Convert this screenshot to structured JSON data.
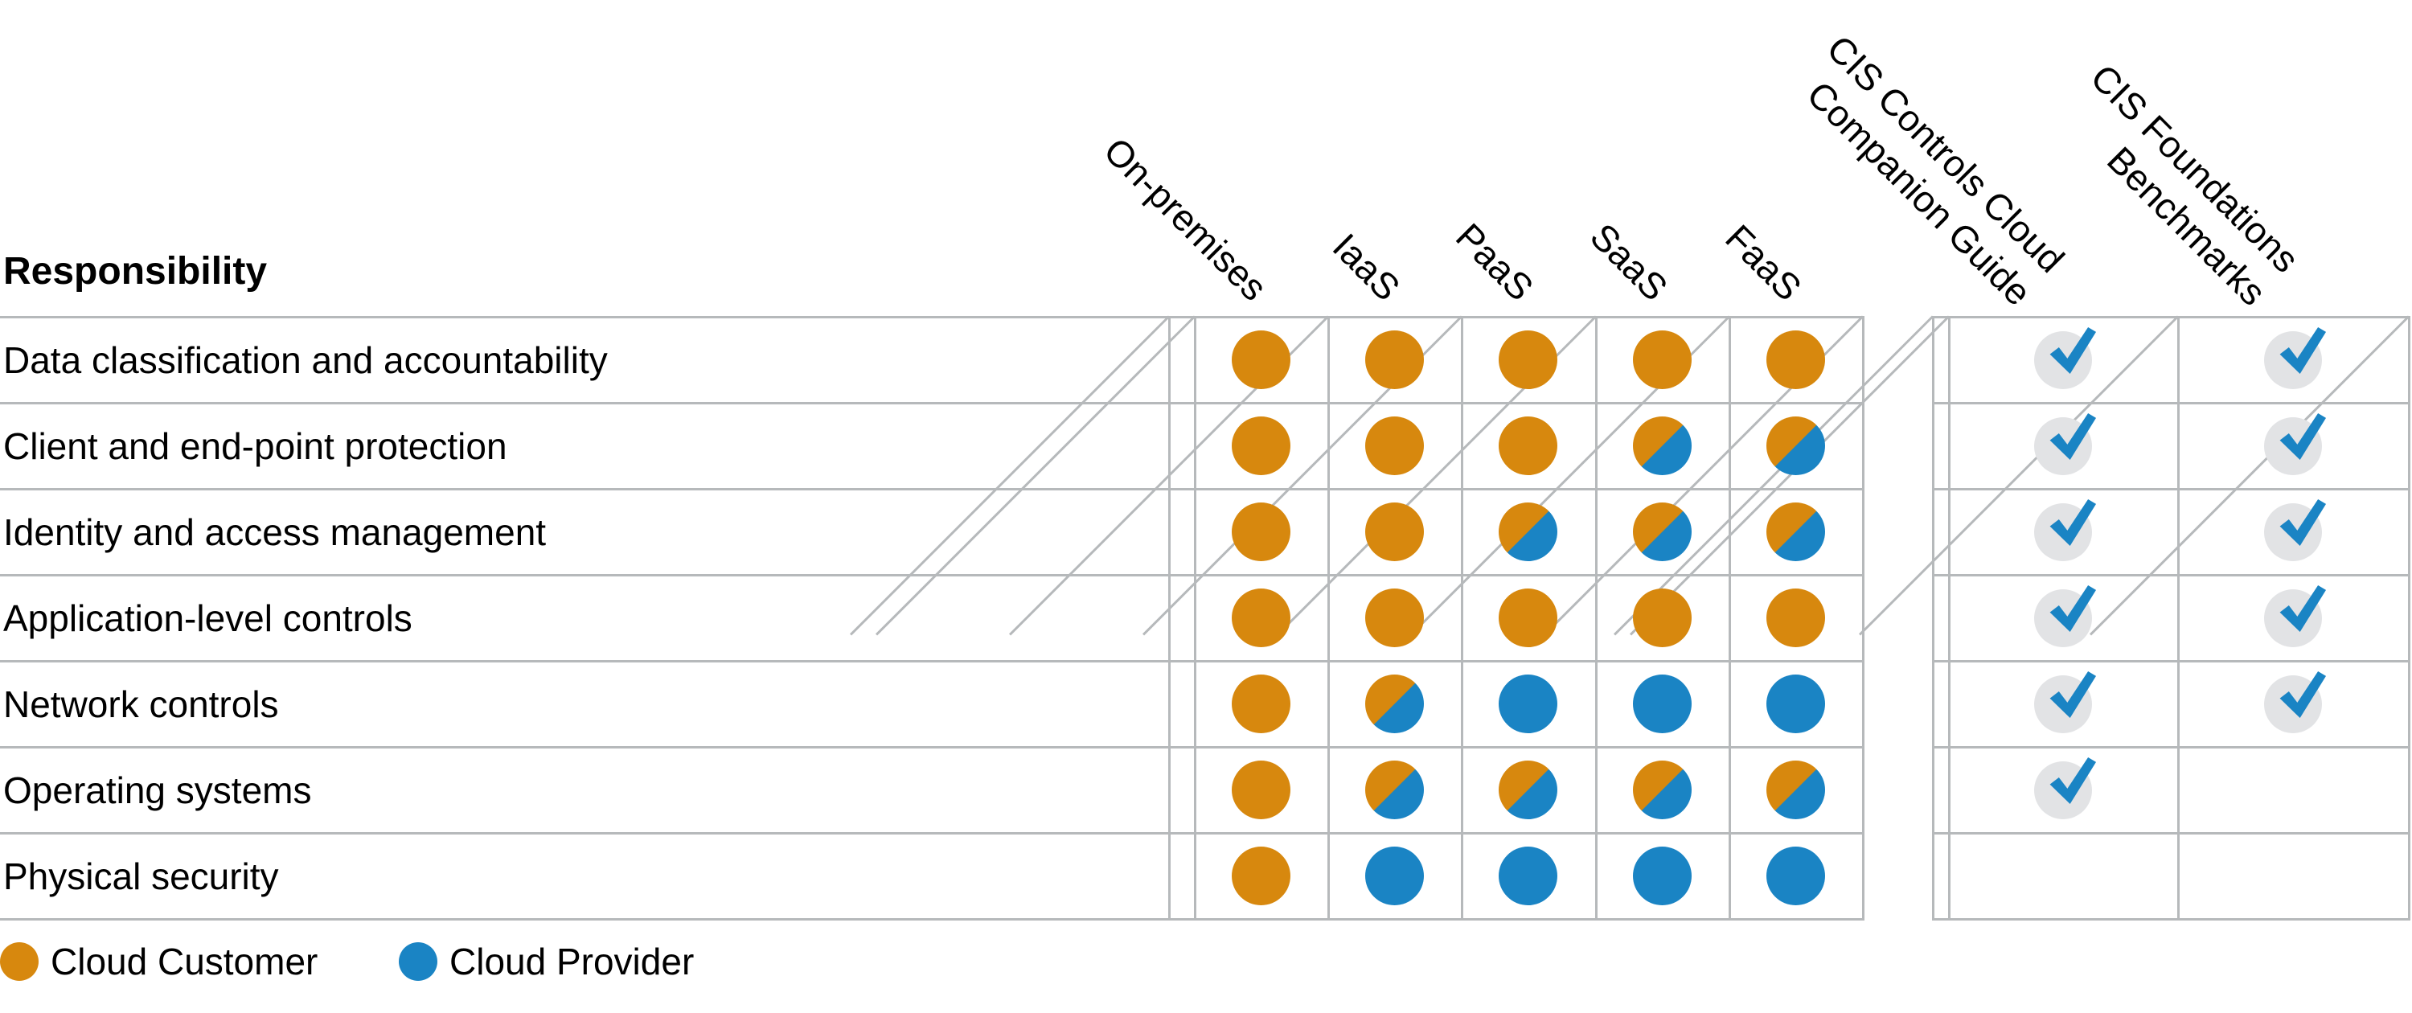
{
  "title": "Responsibility",
  "columns": [
    {
      "id": "on_premises",
      "label": "On-premises",
      "type": "circle"
    },
    {
      "id": "iaas",
      "label": "IaaS",
      "type": "circle"
    },
    {
      "id": "paas",
      "label": "PaaS",
      "type": "circle"
    },
    {
      "id": "saas",
      "label": "SaaS",
      "type": "circle"
    },
    {
      "id": "faas",
      "label": "FaaS",
      "type": "circle"
    },
    {
      "id": "cis_controls",
      "label": "CIS Controls Cloud\nCompanion Guide",
      "type": "check"
    },
    {
      "id": "cis_foundations",
      "label": "CIS Foundations\nBenchmarks",
      "type": "check"
    }
  ],
  "rows": [
    {
      "label": "Data classification and accountability",
      "cells": [
        "customer",
        "customer",
        "customer",
        "customer",
        "customer",
        "check",
        "check"
      ]
    },
    {
      "label": "Client and end-point protection",
      "cells": [
        "customer",
        "customer",
        "customer",
        "shared",
        "shared",
        "check",
        "check"
      ]
    },
    {
      "label": "Identity and access management",
      "cells": [
        "customer",
        "customer",
        "shared",
        "shared",
        "shared",
        "check",
        "check"
      ]
    },
    {
      "label": "Application-level controls",
      "cells": [
        "customer",
        "customer",
        "customer",
        "customer",
        "customer",
        "check",
        "check"
      ]
    },
    {
      "label": "Network controls",
      "cells": [
        "customer",
        "shared",
        "provider",
        "provider",
        "provider",
        "check",
        "check"
      ]
    },
    {
      "label": "Operating systems",
      "cells": [
        "customer",
        "shared",
        "shared",
        "shared",
        "shared",
        "check",
        "none"
      ]
    },
    {
      "label": "Physical security",
      "cells": [
        "customer",
        "provider",
        "provider",
        "provider",
        "provider",
        "none",
        "none"
      ]
    }
  ],
  "legend": {
    "items": [
      {
        "label": "Cloud Customer",
        "role": "customer"
      },
      {
        "label": "Cloud Provider",
        "role": "provider"
      }
    ]
  },
  "colors": {
    "customer": "#d7880e",
    "provider": "#1a84c4",
    "check_mark": "#1a84c4",
    "check_bg": "#e2e3e5",
    "grid": "#b6b9bb"
  },
  "chart_data": {
    "type": "table",
    "title": "Responsibility",
    "columns": [
      "On-premises",
      "IaaS",
      "PaaS",
      "SaaS",
      "FaaS",
      "CIS Controls Cloud Companion Guide",
      "CIS Foundations Benchmarks"
    ],
    "row_categories": [
      "Data classification and accountability",
      "Client and end-point protection",
      "Identity and access management",
      "Application-level controls",
      "Network controls",
      "Operating systems",
      "Physical security"
    ],
    "matrix": [
      [
        "customer",
        "customer",
        "customer",
        "customer",
        "customer",
        "check",
        "check"
      ],
      [
        "customer",
        "customer",
        "customer",
        "shared",
        "shared",
        "check",
        "check"
      ],
      [
        "customer",
        "customer",
        "shared",
        "shared",
        "shared",
        "check",
        "check"
      ],
      [
        "customer",
        "customer",
        "customer",
        "customer",
        "customer",
        "check",
        "check"
      ],
      [
        "customer",
        "shared",
        "provider",
        "provider",
        "provider",
        "check",
        "check"
      ],
      [
        "customer",
        "shared",
        "shared",
        "shared",
        "shared",
        "check",
        "none"
      ],
      [
        "customer",
        "provider",
        "provider",
        "provider",
        "provider",
        "none",
        "none"
      ]
    ],
    "value_meaning": {
      "customer": "Cloud Customer (orange circle)",
      "provider": "Cloud Provider (blue circle)",
      "shared": "Shared: customer upper-left / provider lower-right (split circle)",
      "check": "Applicable (blue checkmark on gray circle)",
      "none": "Empty cell"
    },
    "legend_entries": [
      "Cloud Customer",
      "Cloud Provider"
    ],
    "legend_position": "bottom-left",
    "grid": true
  }
}
